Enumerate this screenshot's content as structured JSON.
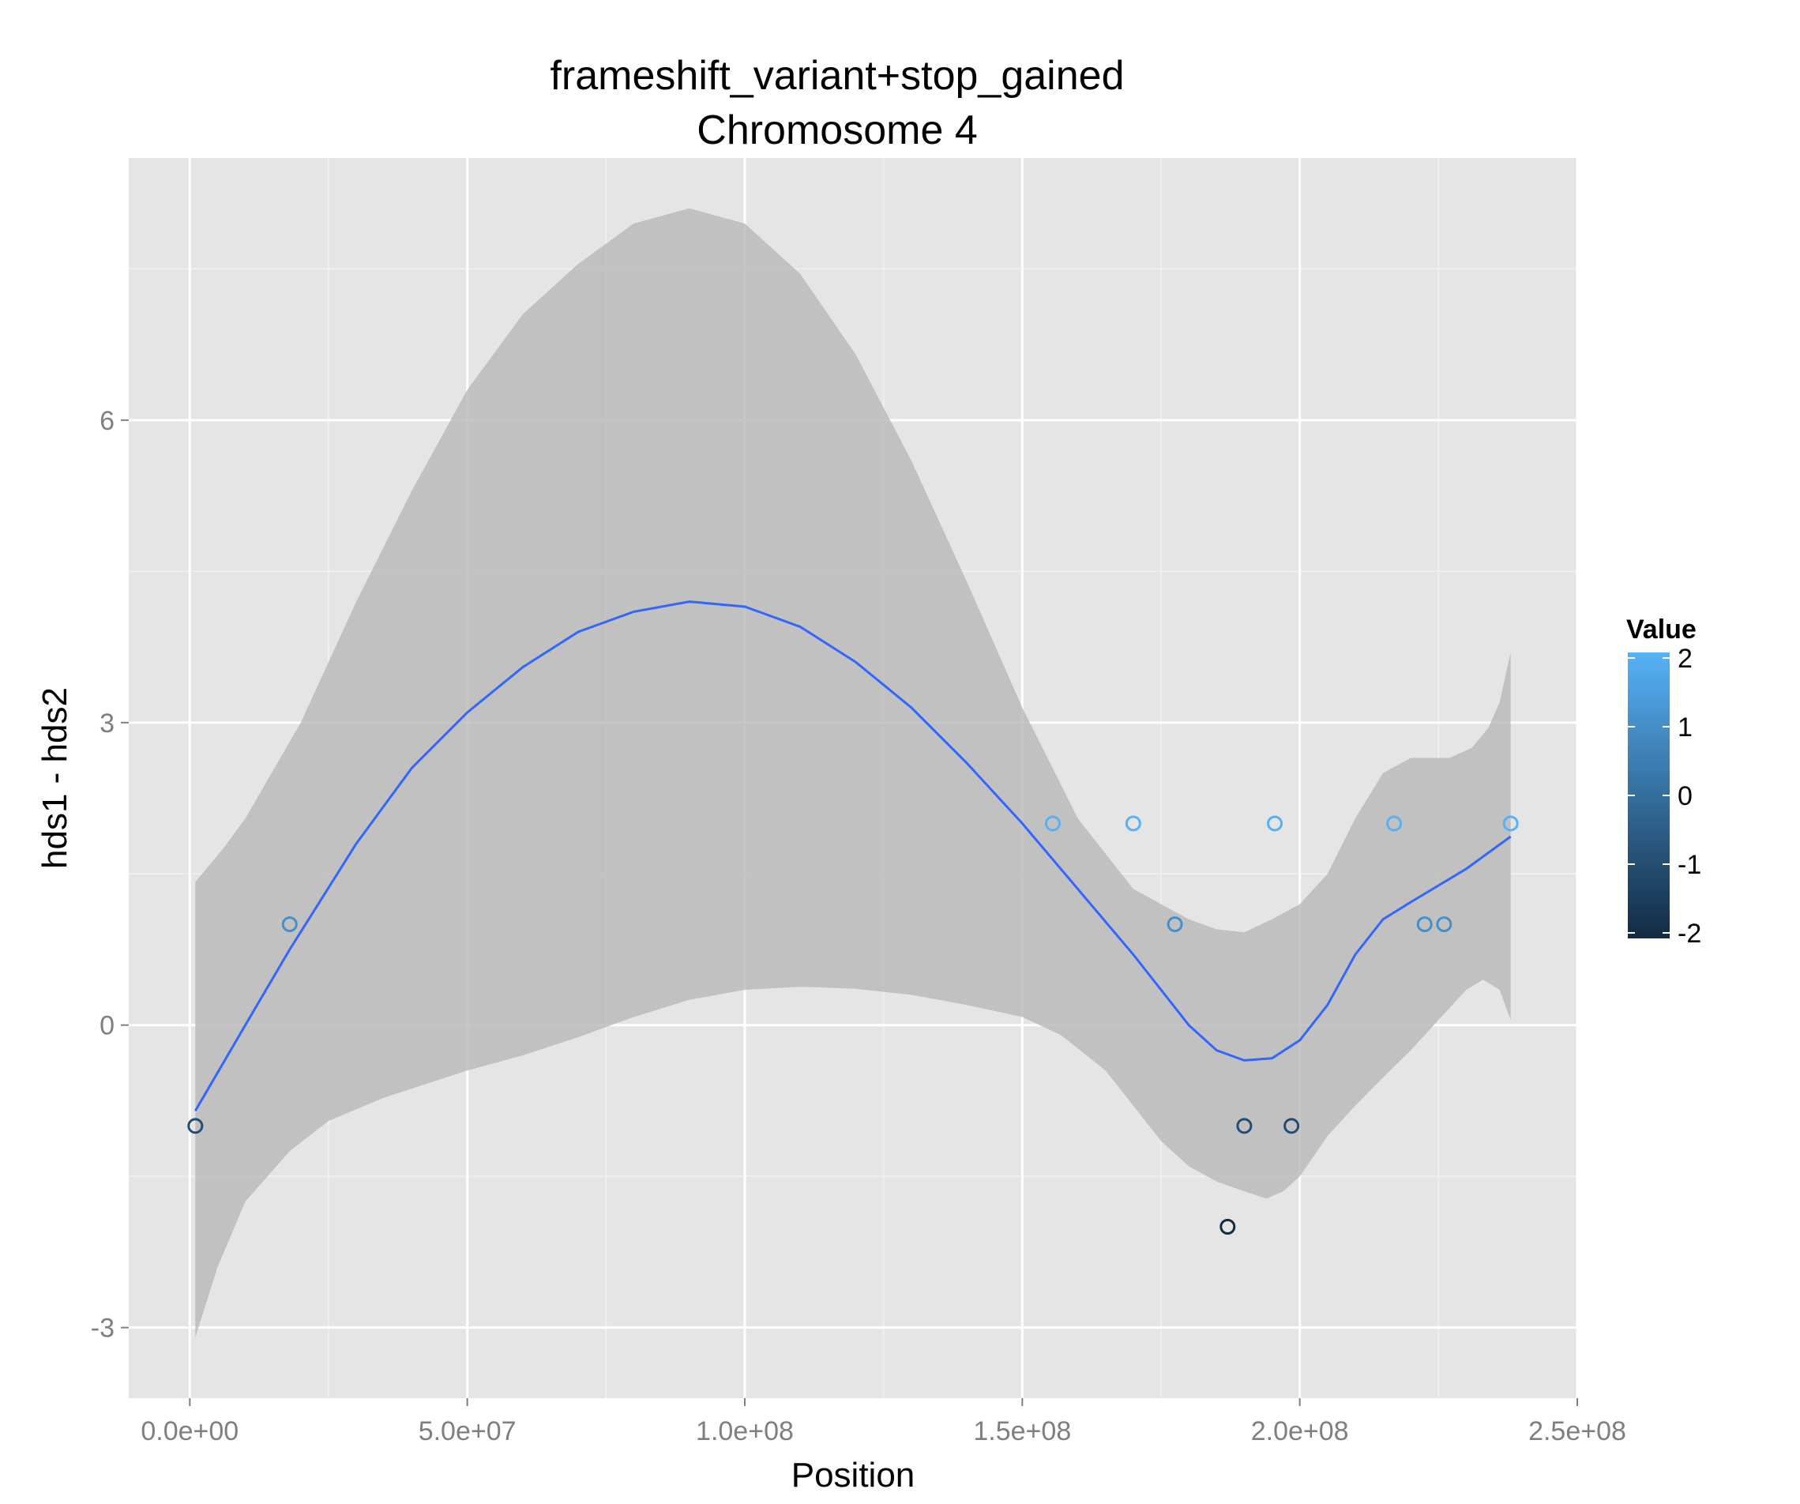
{
  "chart_data": {
    "type": "scatter",
    "title": "frameshift_variant+stop_gained",
    "subtitle": "Chromosome 4",
    "xlabel": "Position",
    "ylabel": "hds1 - hds2",
    "xlim": [
      -11000000,
      250000000
    ],
    "ylim": [
      -3.7,
      8.6
    ],
    "x_ticks": [
      0,
      50000000,
      100000000,
      150000000,
      200000000,
      250000000
    ],
    "x_tick_labels": [
      "0.0e+00",
      "5.0e+07",
      "1.0e+08",
      "1.5e+08",
      "2.0e+08",
      "2.5e+08"
    ],
    "y_ticks": [
      -3,
      0,
      3,
      6
    ],
    "y_tick_labels": [
      "-3",
      "0",
      "3",
      "6"
    ],
    "grid": true,
    "legend": {
      "title": "Value",
      "placement": "right",
      "range": [
        -2,
        2
      ],
      "tick_values": [
        2,
        1,
        0,
        -1,
        -2
      ],
      "tick_labels": [
        "2",
        "1",
        "0",
        "-1",
        "-2"
      ],
      "color_low": "#132b43",
      "color_high": "#56b1f7"
    },
    "points": [
      {
        "x": 1000000,
        "y": -1,
        "value": -1
      },
      {
        "x": 18000000,
        "y": 1,
        "value": 1
      },
      {
        "x": 155500000,
        "y": 2,
        "value": 2
      },
      {
        "x": 170000000,
        "y": 2,
        "value": 2
      },
      {
        "x": 177500000,
        "y": 1,
        "value": 1
      },
      {
        "x": 187000000,
        "y": -2,
        "value": -2
      },
      {
        "x": 190000000,
        "y": -1,
        "value": -1
      },
      {
        "x": 195500000,
        "y": 2,
        "value": 2
      },
      {
        "x": 198500000,
        "y": -1,
        "value": -1
      },
      {
        "x": 217000000,
        "y": 2,
        "value": 2
      },
      {
        "x": 222500000,
        "y": 1,
        "value": 1
      },
      {
        "x": 226000000,
        "y": 1,
        "value": 1
      },
      {
        "x": 238000000,
        "y": 2,
        "value": 2
      }
    ],
    "smooth": {
      "line_color": "#3366ff",
      "band_color": "#b8b8b8",
      "fit": [
        {
          "x": 1000000,
          "y": -0.85
        },
        {
          "x": 10000000,
          "y": 0.0
        },
        {
          "x": 18000000,
          "y": 0.75
        },
        {
          "x": 30000000,
          "y": 1.8
        },
        {
          "x": 40000000,
          "y": 2.55
        },
        {
          "x": 50000000,
          "y": 3.1
        },
        {
          "x": 60000000,
          "y": 3.55
        },
        {
          "x": 70000000,
          "y": 3.9
        },
        {
          "x": 80000000,
          "y": 4.1
        },
        {
          "x": 90000000,
          "y": 4.2
        },
        {
          "x": 100000000,
          "y": 4.15
        },
        {
          "x": 110000000,
          "y": 3.95
        },
        {
          "x": 120000000,
          "y": 3.6
        },
        {
          "x": 130000000,
          "y": 3.15
        },
        {
          "x": 140000000,
          "y": 2.6
        },
        {
          "x": 150000000,
          "y": 2.0
        },
        {
          "x": 160000000,
          "y": 1.35
        },
        {
          "x": 170000000,
          "y": 0.7
        },
        {
          "x": 180000000,
          "y": 0.0
        },
        {
          "x": 185000000,
          "y": -0.25
        },
        {
          "x": 190000000,
          "y": -0.35
        },
        {
          "x": 195000000,
          "y": -0.33
        },
        {
          "x": 200000000,
          "y": -0.15
        },
        {
          "x": 205000000,
          "y": 0.2
        },
        {
          "x": 210000000,
          "y": 0.7
        },
        {
          "x": 215000000,
          "y": 1.05
        },
        {
          "x": 220000000,
          "y": 1.22
        },
        {
          "x": 230000000,
          "y": 1.55
        },
        {
          "x": 238000000,
          "y": 1.87
        }
      ],
      "upper": [
        {
          "x": 1000000,
          "y": 1.42
        },
        {
          "x": 6000000,
          "y": 1.75
        },
        {
          "x": 10000000,
          "y": 2.05
        },
        {
          "x": 20000000,
          "y": 3.0
        },
        {
          "x": 30000000,
          "y": 4.2
        },
        {
          "x": 40000000,
          "y": 5.3
        },
        {
          "x": 50000000,
          "y": 6.3
        },
        {
          "x": 60000000,
          "y": 7.05
        },
        {
          "x": 70000000,
          "y": 7.55
        },
        {
          "x": 80000000,
          "y": 7.95
        },
        {
          "x": 90000000,
          "y": 8.1
        },
        {
          "x": 100000000,
          "y": 7.95
        },
        {
          "x": 110000000,
          "y": 7.45
        },
        {
          "x": 120000000,
          "y": 6.65
        },
        {
          "x": 130000000,
          "y": 5.6
        },
        {
          "x": 140000000,
          "y": 4.4
        },
        {
          "x": 150000000,
          "y": 3.15
        },
        {
          "x": 160000000,
          "y": 2.05
        },
        {
          "x": 170000000,
          "y": 1.35
        },
        {
          "x": 180000000,
          "y": 1.05
        },
        {
          "x": 185000000,
          "y": 0.95
        },
        {
          "x": 190000000,
          "y": 0.92
        },
        {
          "x": 195000000,
          "y": 1.05
        },
        {
          "x": 200000000,
          "y": 1.2
        },
        {
          "x": 205000000,
          "y": 1.5
        },
        {
          "x": 210000000,
          "y": 2.05
        },
        {
          "x": 215000000,
          "y": 2.5
        },
        {
          "x": 220000000,
          "y": 2.65
        },
        {
          "x": 227000000,
          "y": 2.65
        },
        {
          "x": 231000000,
          "y": 2.75
        },
        {
          "x": 234000000,
          "y": 2.95
        },
        {
          "x": 236000000,
          "y": 3.2
        },
        {
          "x": 238000000,
          "y": 3.7
        }
      ],
      "lower": [
        {
          "x": 1000000,
          "y": -3.1
        },
        {
          "x": 5000000,
          "y": -2.4
        },
        {
          "x": 10000000,
          "y": -1.75
        },
        {
          "x": 18000000,
          "y": -1.25
        },
        {
          "x": 25000000,
          "y": -0.95
        },
        {
          "x": 35000000,
          "y": -0.72
        },
        {
          "x": 50000000,
          "y": -0.45
        },
        {
          "x": 60000000,
          "y": -0.3
        },
        {
          "x": 70000000,
          "y": -0.12
        },
        {
          "x": 80000000,
          "y": 0.08
        },
        {
          "x": 90000000,
          "y": 0.25
        },
        {
          "x": 100000000,
          "y": 0.35
        },
        {
          "x": 110000000,
          "y": 0.38
        },
        {
          "x": 120000000,
          "y": 0.36
        },
        {
          "x": 130000000,
          "y": 0.3
        },
        {
          "x": 140000000,
          "y": 0.2
        },
        {
          "x": 150000000,
          "y": 0.08
        },
        {
          "x": 157000000,
          "y": -0.1
        },
        {
          "x": 165000000,
          "y": -0.45
        },
        {
          "x": 170000000,
          "y": -0.8
        },
        {
          "x": 175000000,
          "y": -1.15
        },
        {
          "x": 180000000,
          "y": -1.4
        },
        {
          "x": 185000000,
          "y": -1.55
        },
        {
          "x": 190000000,
          "y": -1.65
        },
        {
          "x": 194000000,
          "y": -1.72
        },
        {
          "x": 197000000,
          "y": -1.65
        },
        {
          "x": 200000000,
          "y": -1.5
        },
        {
          "x": 205000000,
          "y": -1.1
        },
        {
          "x": 210000000,
          "y": -0.8
        },
        {
          "x": 215000000,
          "y": -0.52
        },
        {
          "x": 220000000,
          "y": -0.25
        },
        {
          "x": 225000000,
          "y": 0.05
        },
        {
          "x": 230000000,
          "y": 0.35
        },
        {
          "x": 233000000,
          "y": 0.45
        },
        {
          "x": 236000000,
          "y": 0.35
        },
        {
          "x": 238000000,
          "y": 0.05
        }
      ]
    }
  }
}
